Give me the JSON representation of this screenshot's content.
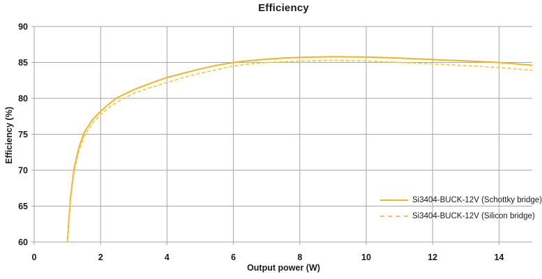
{
  "colors": {
    "background": "#ffffff",
    "grid": "#a6a6a6",
    "text": "#1a1a1a",
    "series_schottky": "#F4B41E",
    "series_silicon": "#F3C84A"
  },
  "chart_data": {
    "type": "line",
    "title": "Efficiency",
    "xlabel": "Output power (W)",
    "ylabel": "Efficiency (%)",
    "xlim": [
      0,
      15
    ],
    "ylim": [
      60,
      90
    ],
    "xticks": [
      0,
      2,
      4,
      6,
      8,
      10,
      12,
      14
    ],
    "yticks": [
      60,
      65,
      70,
      75,
      80,
      85,
      90
    ],
    "grid": true,
    "legend_position": "lower right",
    "x": [
      1.0,
      1.05,
      1.1,
      1.2,
      1.35,
      1.5,
      1.75,
      2,
      2.25,
      2.5,
      3,
      3.5,
      4,
      4.5,
      5,
      5.5,
      6,
      6.5,
      7,
      7.5,
      8,
      9,
      10,
      11,
      12,
      13,
      14,
      15
    ],
    "series": [
      {
        "name": "Si3404-BUCK-12V (Schottky bridge)",
        "style": "solid",
        "color": "#F4B41E",
        "values": [
          60,
          63.5,
          66.5,
          70.2,
          73.2,
          75.2,
          77.0,
          78.2,
          79.2,
          80.1,
          81.2,
          82.1,
          82.9,
          83.5,
          84.1,
          84.6,
          85.0,
          85.25,
          85.45,
          85.6,
          85.7,
          85.8,
          85.75,
          85.6,
          85.4,
          85.2,
          85.0,
          84.6
        ]
      },
      {
        "name": "Si3404-BUCK-12V (Silicon bridge)",
        "style": "dashed",
        "color": "#F3C84A",
        "values": [
          60,
          63.2,
          66.0,
          69.7,
          72.7,
          74.7,
          76.5,
          77.7,
          78.7,
          79.5,
          80.7,
          81.5,
          82.2,
          82.9,
          83.5,
          84.0,
          84.5,
          84.8,
          85.0,
          85.1,
          85.2,
          85.3,
          85.2,
          85.0,
          84.8,
          84.55,
          84.3,
          83.9
        ]
      }
    ]
  }
}
